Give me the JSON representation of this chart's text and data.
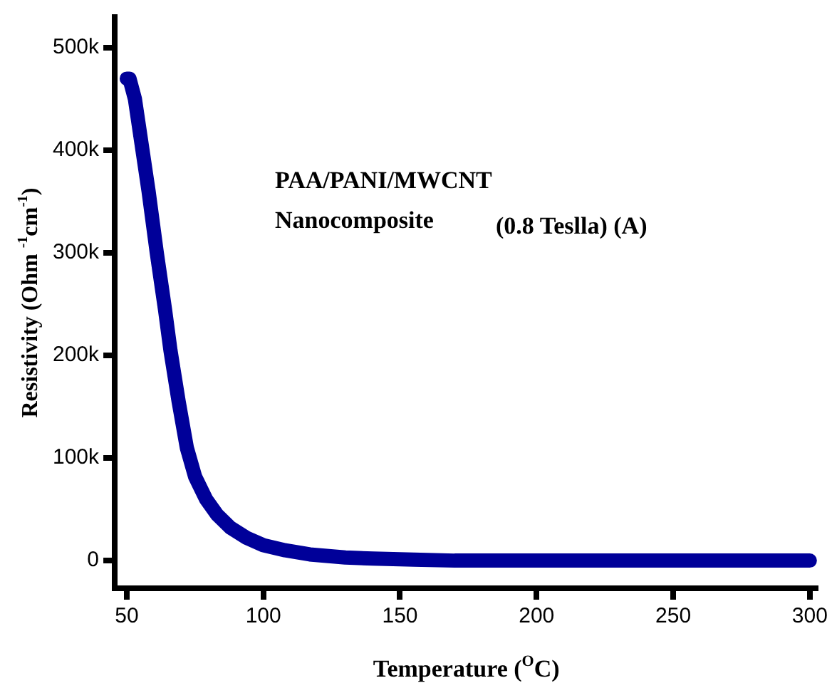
{
  "chart_data": {
    "type": "line",
    "xlabel": "Temperature ($^{O}$C)",
    "ylabel": "Resistivity (Ohm $^{-1}$cm$^{-1}$)",
    "annotations": [
      "PAA/PANI/MWCNT",
      "Nanocomposite",
      "(0.8 Teslla) (A)"
    ],
    "x": [
      50,
      51,
      53,
      56,
      58,
      61,
      64,
      66,
      69,
      72,
      75,
      79,
      83,
      88,
      94,
      100,
      108,
      117,
      130,
      140,
      155,
      170,
      200,
      250,
      300
    ],
    "series": [
      {
        "color": "#000099",
        "values": [
          470000,
          470000,
          450000,
          396000,
          360000,
          300000,
          245000,
          205000,
          155000,
          110000,
          82000,
          60000,
          45000,
          32000,
          22000,
          15000,
          10000,
          6000,
          3000,
          2000,
          1000,
          0,
          0,
          0,
          0
        ]
      }
    ],
    "xlim": [
      45.6,
      303
    ],
    "xticks": [
      50,
      100,
      150,
      200,
      250,
      300
    ],
    "ylim": [
      -27000,
      530000
    ],
    "yticks": [
      {
        "value": 0,
        "label": "0"
      },
      {
        "value": 100000,
        "label": "100k"
      },
      {
        "value": 200000,
        "label": "200k"
      },
      {
        "value": 300000,
        "label": "300k"
      },
      {
        "value": 400000,
        "label": "400k"
      },
      {
        "value": 500000,
        "label": "500k"
      }
    ],
    "grid": false,
    "legend": false,
    "marker": "none",
    "line_style": "solid"
  }
}
